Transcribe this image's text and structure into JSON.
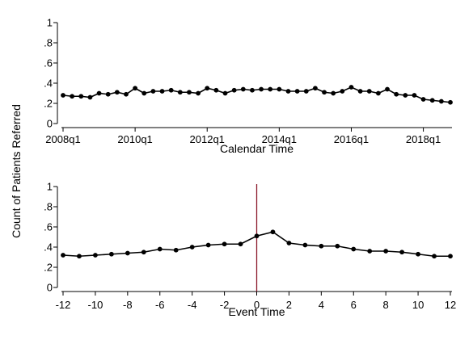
{
  "figure": {
    "ylabel": "Count of Patients Referred"
  },
  "chart_data": [
    {
      "type": "line",
      "xlabel": "Calendar Time",
      "ylim": [
        0,
        1
      ],
      "y_ticks": [
        "0",
        ".2",
        ".4",
        ".6",
        ".8",
        "1"
      ],
      "x_ticks": [
        "2008q1",
        "2010q1",
        "2012q1",
        "2014q1",
        "2016q1",
        "2018q1"
      ],
      "x_tick_quarter_index": [
        0,
        8,
        16,
        24,
        32,
        40
      ],
      "x_range_quarter_index": [
        0,
        43
      ],
      "grid": false,
      "series": [
        {
          "color": "#000000",
          "values": [
            0.28,
            0.27,
            0.27,
            0.26,
            0.3,
            0.29,
            0.31,
            0.29,
            0.35,
            0.3,
            0.32,
            0.32,
            0.33,
            0.31,
            0.31,
            0.3,
            0.35,
            0.33,
            0.3,
            0.33,
            0.34,
            0.33,
            0.34,
            0.34,
            0.34,
            0.32,
            0.32,
            0.32,
            0.35,
            0.31,
            0.3,
            0.32,
            0.36,
            0.32,
            0.32,
            0.3,
            0.34,
            0.29,
            0.28,
            0.28,
            0.24,
            0.23,
            0.22,
            0.21
          ]
        }
      ]
    },
    {
      "type": "line",
      "xlabel": "Event Time",
      "ylim": [
        0,
        1
      ],
      "y_ticks": [
        "0",
        ".2",
        ".4",
        ".6",
        ".8",
        "1"
      ],
      "x_ticks": [
        "-12",
        "-10",
        "-8",
        "-6",
        "-4",
        "-2",
        "0",
        "2",
        "4",
        "6",
        "8",
        "10",
        "12"
      ],
      "xlim": [
        -12,
        12
      ],
      "grid": false,
      "vline": {
        "x": 0,
        "color": "#8b1a2b"
      },
      "series": [
        {
          "color": "#000000",
          "x": [
            -12,
            -11,
            -10,
            -9,
            -8,
            -7,
            -6,
            -5,
            -4,
            -3,
            -2,
            -1,
            0,
            1,
            2,
            3,
            4,
            5,
            6,
            7,
            8,
            9,
            10,
            11,
            12
          ],
          "values": [
            0.32,
            0.31,
            0.32,
            0.33,
            0.34,
            0.35,
            0.38,
            0.37,
            0.4,
            0.42,
            0.43,
            0.43,
            0.51,
            0.55,
            0.44,
            0.42,
            0.41,
            0.41,
            0.38,
            0.36,
            0.36,
            0.35,
            0.33,
            0.31,
            0.31
          ]
        }
      ]
    }
  ]
}
